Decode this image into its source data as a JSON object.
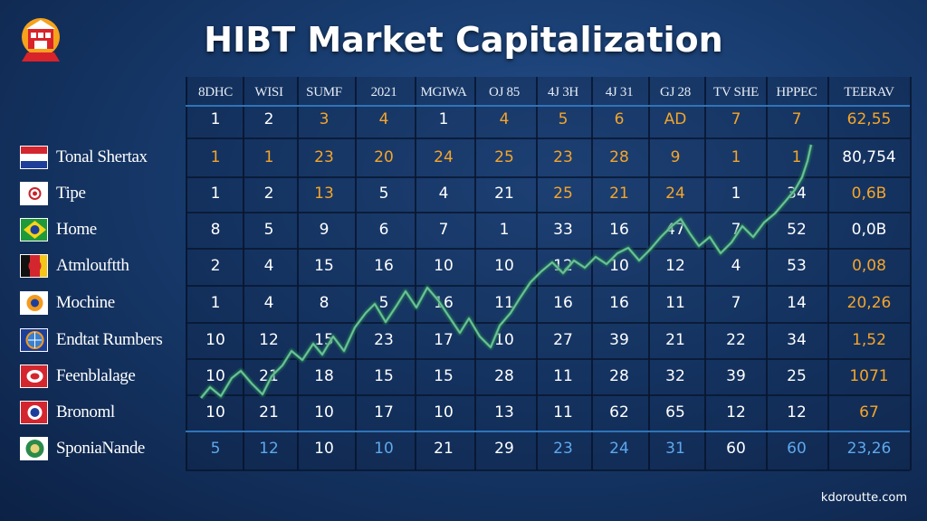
{
  "title": "HIBT Market Capitalization",
  "watermark": "kdoroutte.com",
  "colors": {
    "white": "#ffffff",
    "orange": "#f5a52a",
    "blue": "#5ea8ee",
    "line": "#3f9a73"
  },
  "table": {
    "headers": [
      "8DHC",
      "WISI",
      "SUMF",
      "2021",
      "MGIWA",
      "OJ 85",
      "4J 3H",
      "4J 31",
      "GJ 28",
      "TV SHE",
      "HPPEC",
      "TEERAV"
    ],
    "subheader": {
      "values": [
        "1",
        "2",
        "3",
        "4",
        "1",
        "4",
        "5",
        "6",
        "AD",
        "7",
        "7",
        "62,55"
      ],
      "colors": [
        "white",
        "white",
        "orange",
        "orange",
        "white",
        "orange",
        "orange",
        "orange",
        "orange",
        "orange",
        "orange",
        "orange"
      ]
    },
    "rows": [
      {
        "label": "Tonal Shertax",
        "flag": "stripes-red-white-blue",
        "values": [
          "1",
          "1",
          "23",
          "20",
          "24",
          "25",
          "23",
          "28",
          "9",
          "1",
          "1",
          "80,754"
        ],
        "colors": [
          "orange",
          "orange",
          "orange",
          "orange",
          "orange",
          "orange",
          "orange",
          "orange",
          "orange",
          "orange",
          "orange",
          "white"
        ]
      },
      {
        "label": "Tipe",
        "flag": "white-red-circle",
        "values": [
          "1",
          "2",
          "13",
          "5",
          "4",
          "21",
          "25",
          "21",
          "24",
          "1",
          "34",
          "0,6B"
        ],
        "colors": [
          "white",
          "white",
          "orange",
          "white",
          "white",
          "white",
          "orange",
          "orange",
          "orange",
          "white",
          "white",
          "orange"
        ]
      },
      {
        "label": "Home",
        "flag": "green-yellow-diamond",
        "values": [
          "8",
          "5",
          "9",
          "6",
          "7",
          "1",
          "33",
          "16",
          "47",
          "7",
          "52",
          "0,0B"
        ],
        "colors": [
          "white",
          "white",
          "white",
          "white",
          "white",
          "white",
          "white",
          "white",
          "white",
          "white",
          "white",
          "white"
        ]
      },
      {
        "label": "Atmlouftth",
        "flag": "black-red-yellow-circle",
        "values": [
          "2",
          "4",
          "15",
          "16",
          "10",
          "10",
          "12",
          "10",
          "12",
          "4",
          "53",
          "0,08"
        ],
        "colors": [
          "white",
          "white",
          "white",
          "white",
          "white",
          "white",
          "white",
          "white",
          "white",
          "white",
          "white",
          "orange"
        ]
      },
      {
        "label": "Mochine",
        "flag": "orange-blue-emblem",
        "values": [
          "1",
          "4",
          "8",
          "5",
          "16",
          "11",
          "16",
          "16",
          "11",
          "7",
          "14",
          "20,26"
        ],
        "colors": [
          "white",
          "white",
          "white",
          "white",
          "white",
          "white",
          "white",
          "white",
          "white",
          "white",
          "white",
          "orange"
        ]
      },
      {
        "label": "Endtat Rumbers",
        "flag": "blue-globe",
        "values": [
          "10",
          "12",
          "15",
          "23",
          "17",
          "10",
          "27",
          "39",
          "21",
          "22",
          "34",
          "1,52"
        ],
        "colors": [
          "white",
          "white",
          "white",
          "white",
          "white",
          "white",
          "white",
          "white",
          "white",
          "white",
          "white",
          "orange"
        ]
      },
      {
        "label": "Feenblalage",
        "flag": "red-white-oval",
        "values": [
          "10",
          "21",
          "18",
          "15",
          "15",
          "28",
          "11",
          "28",
          "32",
          "39",
          "25",
          "1071"
        ],
        "colors": [
          "white",
          "white",
          "white",
          "white",
          "white",
          "white",
          "white",
          "white",
          "white",
          "white",
          "white",
          "orange"
        ]
      },
      {
        "label": "Bronoml",
        "flag": "red-blue-circle",
        "values": [
          "10",
          "21",
          "10",
          "17",
          "10",
          "13",
          "11",
          "62",
          "65",
          "12",
          "12",
          "67"
        ],
        "colors": [
          "white",
          "white",
          "white",
          "white",
          "white",
          "white",
          "white",
          "white",
          "white",
          "white",
          "white",
          "orange"
        ]
      }
    ],
    "footer": {
      "label": "SponiaNande",
      "flag": "green-white-seal",
      "values": [
        "5",
        "12",
        "10",
        "10",
        "21",
        "29",
        "23",
        "24",
        "31",
        "60",
        "60",
        "23,26"
      ],
      "colors": [
        "blue",
        "blue",
        "white",
        "blue",
        "white",
        "white",
        "blue",
        "blue",
        "blue",
        "white",
        "blue",
        "blue"
      ]
    }
  }
}
